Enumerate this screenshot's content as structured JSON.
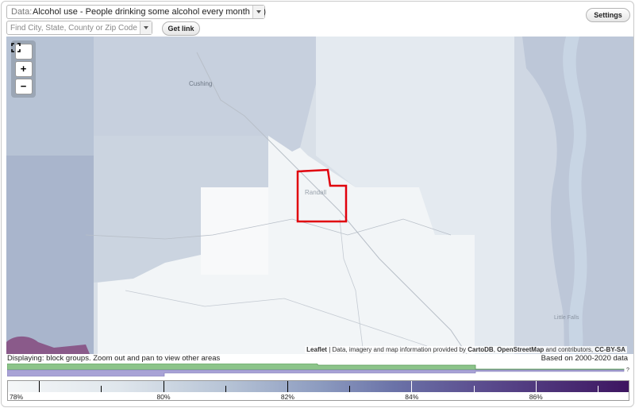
{
  "header": {
    "data_select": {
      "label": "Data:",
      "value": "Alcohol use - People drinking some alcohol every month (%)"
    },
    "search": {
      "placeholder": "Find City, State, County or Zip Code"
    },
    "get_link_label": "Get link",
    "settings_label": "Settings"
  },
  "map": {
    "zoom": {
      "fullscreen_icon": "fullscreen-icon",
      "zoom_in": "+",
      "zoom_out": "−"
    },
    "place_labels": [
      "Cushing",
      "Randall",
      "Little Falls"
    ],
    "attribution": {
      "leaflet": "Leaflet",
      "text1": " | Data, imagery and map information provided by ",
      "carto": "CartoDB",
      "sep": ", ",
      "osm": "OpenStreetMap",
      "text2": " and contributors, ",
      "license": "CC-BY-SA"
    },
    "highlight_color": "#e0000c"
  },
  "status": {
    "displaying": "Displaying: block groups. Zoom out and pan to view other areas",
    "based_on": "Based on 2000-2020 data"
  },
  "histogram": {
    "green_color": "#7fbf7f",
    "purple_color": "#a49cd4",
    "question_mark": "?"
  },
  "legend": {
    "labels": [
      "78%",
      "80%",
      "82%",
      "84%",
      "86%"
    ],
    "min": 77.5,
    "max": 87.5
  }
}
